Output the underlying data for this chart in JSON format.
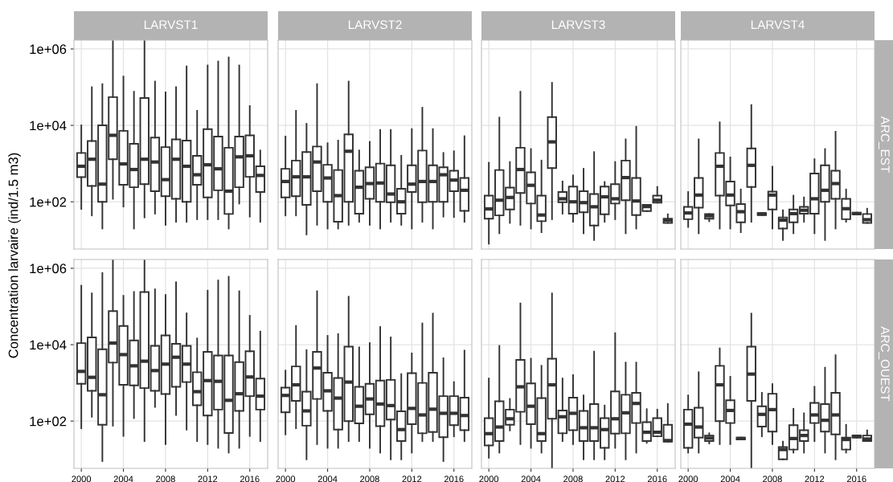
{
  "chart_data": [
    {
      "type": "box",
      "title": "LARVST1",
      "ylabel": "Concentration larvaire (ind/1.5 m3)",
      "x": [
        2000,
        2001,
        2002,
        2003,
        2004,
        2005,
        2006,
        2007,
        2008,
        2009,
        2010,
        2011,
        2012,
        2013,
        2014,
        2015,
        2016,
        2017
      ],
      "xlim": [
        1999.3,
        2017.7
      ],
      "xticks": [
        2000,
        2004,
        2008,
        2012,
        2016
      ],
      "ylim": [
        5.8,
        1700000
      ],
      "yticks": [
        {
          "value": 100,
          "label": "1e+02"
        },
        {
          "value": 10000,
          "label": "1e+04"
        },
        {
          "value": 1000000,
          "label": "1e+06"
        }
      ],
      "log": true,
      "grid": true,
      "tick_labels": "y",
      "boxes": [
        {
          "low": 65,
          "q1": 440,
          "median": 850,
          "q3": 1900,
          "high": 10000
        },
        {
          "low": 44,
          "q1": 260,
          "median": 1300,
          "q3": 3900,
          "high": 100000
        },
        {
          "low": 20,
          "q1": 100,
          "median": 290,
          "q3": 10000,
          "high": 120000
        },
        {
          "low": 120,
          "q1": 1300,
          "median": 5500,
          "q3": 55000,
          "high": 1700000
        },
        {
          "low": 75,
          "q1": 280,
          "median": 980,
          "q3": 7200,
          "high": 190000
        },
        {
          "low": 20,
          "q1": 240,
          "median": 700,
          "q3": 3300,
          "high": 76000
        },
        {
          "low": 39,
          "q1": 290,
          "median": 1300,
          "q3": 52000,
          "high": 1700000
        },
        {
          "low": 49,
          "q1": 190,
          "median": 1100,
          "q3": 4800,
          "high": 140000
        },
        {
          "low": 25,
          "q1": 140,
          "median": 380,
          "q3": 2700,
          "high": 73000
        },
        {
          "low": 30,
          "q1": 120,
          "median": 1300,
          "q3": 4300,
          "high": 100000
        },
        {
          "low": 30,
          "q1": 100,
          "median": 850,
          "q3": 4000,
          "high": 350000
        },
        {
          "low": 35,
          "q1": 280,
          "median": 510,
          "q3": 1600,
          "high": 24000
        },
        {
          "low": 35,
          "q1": 130,
          "median": 930,
          "q3": 8000,
          "high": 370000
        },
        {
          "low": 35,
          "q1": 200,
          "median": 730,
          "q3": 5100,
          "high": 470000
        },
        {
          "low": 20,
          "q1": 48,
          "median": 190,
          "q3": 2600,
          "high": 600000
        },
        {
          "low": 90,
          "q1": 240,
          "median": 1500,
          "q3": 5100,
          "high": 370000
        },
        {
          "low": 41,
          "q1": 450,
          "median": 1600,
          "q3": 5500,
          "high": 32000
        },
        {
          "low": 30,
          "q1": 180,
          "median": 490,
          "q3": 850,
          "high": 2200
        }
      ]
    },
    {
      "type": "box",
      "title": "LARVST2",
      "x": [
        2000,
        2001,
        2002,
        2003,
        2004,
        2005,
        2006,
        2007,
        2008,
        2009,
        2010,
        2011,
        2012,
        2013,
        2014,
        2015,
        2016,
        2017
      ],
      "xlim": [
        1999.3,
        2017.7
      ],
      "xticks": [
        2000,
        2004,
        2008,
        2012,
        2016
      ],
      "ylim": [
        5.8,
        1700000
      ],
      "yticks": [
        {
          "value": 100,
          "label": null
        },
        {
          "value": 10000,
          "label": null
        },
        {
          "value": 1000000,
          "label": null
        }
      ],
      "log": true,
      "grid": true,
      "tick_labels": false,
      "boxes": [
        {
          "low": 44,
          "q1": 130,
          "median": 340,
          "q3": 730,
          "high": 5100
        },
        {
          "low": 44,
          "q1": 140,
          "median": 450,
          "q3": 1200,
          "high": 24000
        },
        {
          "low": 14,
          "q1": 83,
          "median": 450,
          "q3": 2000,
          "high": 11000
        },
        {
          "low": 25,
          "q1": 190,
          "median": 1100,
          "q3": 2800,
          "high": 120000
        },
        {
          "low": 20,
          "q1": 100,
          "median": 420,
          "q3": 930,
          "high": 3400
        },
        {
          "low": 20,
          "q1": 30,
          "median": 145,
          "q3": 680,
          "high": 4000
        },
        {
          "low": 25,
          "q1": 100,
          "median": 2100,
          "q3": 5800,
          "high": 140000
        },
        {
          "low": 30,
          "q1": 49,
          "median": 240,
          "q3": 650,
          "high": 2200
        },
        {
          "low": 25,
          "q1": 120,
          "median": 300,
          "q3": 800,
          "high": 3700
        },
        {
          "low": 20,
          "q1": 100,
          "median": 310,
          "q3": 1000,
          "high": 7600
        },
        {
          "low": 30,
          "q1": 97,
          "median": 160,
          "q3": 900,
          "high": 7600
        },
        {
          "low": 25,
          "q1": 49,
          "median": 100,
          "q3": 220,
          "high": 1600
        },
        {
          "low": 20,
          "q1": 180,
          "median": 290,
          "q3": 900,
          "high": 8000
        },
        {
          "low": 30,
          "q1": 97,
          "median": 340,
          "q3": 2200,
          "high": 29000
        },
        {
          "low": 20,
          "q1": 100,
          "median": 340,
          "q3": 900,
          "high": 8000
        },
        {
          "low": 41,
          "q1": 100,
          "median": 510,
          "q3": 800,
          "high": 1900
        },
        {
          "low": 40,
          "q1": 190,
          "median": 370,
          "q3": 650,
          "high": 2100
        },
        {
          "low": 30,
          "q1": 58,
          "median": 200,
          "q3": 420,
          "high": 5200
        }
      ]
    },
    {
      "type": "box",
      "title": "LARVST3",
      "x": [
        2000,
        2001,
        2002,
        2003,
        2004,
        2005,
        2006,
        2007,
        2008,
        2009,
        2010,
        2011,
        2012,
        2013,
        2014,
        2015,
        2016,
        2017
      ],
      "xlim": [
        1999.3,
        2017.7
      ],
      "xticks": [
        2000,
        2004,
        2008,
        2012,
        2016
      ],
      "ylim": [
        5.8,
        1700000
      ],
      "yticks": [
        {
          "value": 100,
          "label": null
        },
        {
          "value": 10000,
          "label": null
        },
        {
          "value": 1000000,
          "label": null
        }
      ],
      "log": true,
      "grid": true,
      "tick_labels": false,
      "boxes": [
        {
          "low": 8,
          "q1": 36,
          "median": 65,
          "q3": 145,
          "high": 1050
        },
        {
          "low": 15,
          "q1": 44,
          "median": 110,
          "q3": 680,
          "high": 16000
        },
        {
          "low": 28,
          "q1": 63,
          "median": 130,
          "q3": 235,
          "high": 1100
        },
        {
          "low": 25,
          "q1": 170,
          "median": 700,
          "q3": 2600,
          "high": 76000
        },
        {
          "low": 20,
          "q1": 90,
          "median": 270,
          "q3": 590,
          "high": 2400
        },
        {
          "low": 16,
          "q1": 31,
          "median": 45,
          "q3": 145,
          "high": 1200
        },
        {
          "low": 35,
          "q1": 760,
          "median": 3700,
          "q3": 16500,
          "high": 130000
        },
        {
          "low": 49,
          "q1": 97,
          "median": 120,
          "q3": 180,
          "high": 340
        },
        {
          "low": 30,
          "q1": 49,
          "median": 100,
          "q3": 250,
          "high": 490
        },
        {
          "low": 15,
          "q1": 53,
          "median": 95,
          "q3": 190,
          "high": 730
        },
        {
          "low": 10,
          "q1": 24,
          "median": 74,
          "q3": 160,
          "high": 2000
        },
        {
          "low": 30,
          "q1": 47,
          "median": 135,
          "q3": 250,
          "high": 330
        },
        {
          "low": 35,
          "q1": 90,
          "median": 120,
          "q3": 290,
          "high": 1100
        },
        {
          "low": 15,
          "q1": 110,
          "median": 430,
          "q3": 1200,
          "high": 4300
        },
        {
          "low": 20,
          "q1": 45,
          "median": 105,
          "q3": 420,
          "high": 9200
        },
        {
          "low": 57,
          "q1": 57,
          "median": 75,
          "q3": 83,
          "high": 83
        },
        {
          "low": 95,
          "q1": 95,
          "median": 110,
          "q3": 145,
          "high": 245
        },
        {
          "low": 28,
          "q1": 28,
          "median": 33,
          "q3": 36,
          "high": 47
        }
      ]
    },
    {
      "type": "box",
      "title": "LARVST4",
      "y2label": "ARC_EST",
      "x": [
        2000,
        2001,
        2002,
        2003,
        2004,
        2005,
        2006,
        2007,
        2008,
        2009,
        2010,
        2011,
        2012,
        2013,
        2014,
        2015,
        2016,
        2017
      ],
      "xlim": [
        1999.3,
        2017.7
      ],
      "xticks": [
        2000,
        2004,
        2008,
        2012,
        2016
      ],
      "ylim": [
        5.8,
        1700000
      ],
      "yticks": [
        {
          "value": 100,
          "label": null
        },
        {
          "value": 10000,
          "label": null
        },
        {
          "value": 1000000,
          "label": null
        }
      ],
      "log": true,
      "grid": true,
      "tick_labels": false,
      "boxes": [
        {
          "low": 22,
          "q1": 35,
          "median": 51,
          "q3": 74,
          "high": 180
        },
        {
          "low": 15,
          "q1": 70,
          "median": 150,
          "q3": 420,
          "high": 4300
        },
        {
          "low": 31,
          "q1": 36,
          "median": 43,
          "q3": 48,
          "high": 48
        },
        {
          "low": 20,
          "q1": 145,
          "median": 850,
          "q3": 1900,
          "high": 12000
        },
        {
          "low": 20,
          "q1": 80,
          "median": 150,
          "q3": 340,
          "high": 1450
        },
        {
          "low": 16,
          "q1": 29,
          "median": 55,
          "q3": 87,
          "high": 210
        },
        {
          "low": 30,
          "q1": 245,
          "median": 900,
          "q3": 2500,
          "high": 34000
        },
        {
          "low": 45,
          "q1": 45,
          "median": 48,
          "q3": 51,
          "high": 51
        },
        {
          "low": 20,
          "q1": 63,
          "median": 150,
          "q3": 185,
          "high": 830
        },
        {
          "low": 10,
          "q1": 20,
          "median": 33,
          "q3": 39,
          "high": 60
        },
        {
          "low": 15,
          "q1": 29,
          "median": 49,
          "q3": 63,
          "high": 145
        },
        {
          "low": 30,
          "q1": 49,
          "median": 60,
          "q3": 74,
          "high": 130
        },
        {
          "low": 15,
          "q1": 49,
          "median": 120,
          "q3": 550,
          "high": 1300
        },
        {
          "low": 10,
          "q1": 100,
          "median": 200,
          "q3": 900,
          "high": 2400
        },
        {
          "low": 20,
          "q1": 120,
          "median": 300,
          "q3": 650,
          "high": 6800
        },
        {
          "low": 30,
          "q1": 35,
          "median": 66,
          "q3": 120,
          "high": 210
        },
        {
          "low": 47,
          "q1": 47,
          "median": 49,
          "q3": 52,
          "high": 52
        },
        {
          "low": 28,
          "q1": 28,
          "median": 34,
          "q3": 48,
          "high": 66
        }
      ]
    },
    {
      "type": "box",
      "x": [
        2000,
        2001,
        2002,
        2003,
        2004,
        2005,
        2006,
        2007,
        2008,
        2009,
        2010,
        2011,
        2012,
        2013,
        2014,
        2015,
        2016,
        2017
      ],
      "xlim": [
        1999.3,
        2017.7
      ],
      "xticks": [
        2000,
        2004,
        2008,
        2012,
        2016
      ],
      "ylim": [
        5.8,
        1700000
      ],
      "yticks": [
        {
          "value": 100,
          "label": "1e+02"
        },
        {
          "value": 10000,
          "label": "1e+04"
        },
        {
          "value": 1000000,
          "label": "1e+06"
        }
      ],
      "log": true,
      "grid": true,
      "boxes": [
        {
          "low": 65,
          "q1": 950,
          "median": 2000,
          "q3": 11000,
          "high": 350000
        },
        {
          "low": 130,
          "q1": 620,
          "median": 1400,
          "q3": 15500,
          "high": 220000
        },
        {
          "low": 9,
          "q1": 80,
          "median": 490,
          "q3": 7600,
          "high": 750000
        },
        {
          "low": 76,
          "q1": 3400,
          "median": 11000,
          "q3": 76000,
          "high": 1700000
        },
        {
          "low": 41,
          "q1": 890,
          "median": 5500,
          "q3": 31000,
          "high": 190000
        },
        {
          "low": 120,
          "q1": 860,
          "median": 2800,
          "q3": 13000,
          "high": 240000
        },
        {
          "low": 30,
          "q1": 730,
          "median": 3700,
          "q3": 240000,
          "high": 1700000
        },
        {
          "low": 235,
          "q1": 620,
          "median": 2100,
          "q3": 9300,
          "high": 280000
        },
        {
          "low": 25,
          "q1": 510,
          "median": 3100,
          "q3": 17500,
          "high": 200000
        },
        {
          "low": 145,
          "q1": 790,
          "median": 4700,
          "q3": 10500,
          "high": 430000
        },
        {
          "low": 60,
          "q1": 1050,
          "median": 3100,
          "q3": 9300,
          "high": 66000
        },
        {
          "low": 30,
          "q1": 260,
          "median": 590,
          "q3": 1900,
          "high": 14500
        },
        {
          "low": 25,
          "q1": 140,
          "median": 1150,
          "q3": 6500,
          "high": 260000
        },
        {
          "low": 20,
          "q1": 200,
          "median": 1100,
          "q3": 5200,
          "high": 480000
        },
        {
          "low": 15,
          "q1": 49,
          "median": 350,
          "q3": 5200,
          "high": 600000
        },
        {
          "low": 20,
          "q1": 185,
          "median": 520,
          "q3": 3500,
          "high": 250000
        },
        {
          "low": 41,
          "q1": 450,
          "median": 1430,
          "q3": 6700,
          "high": 57000
        },
        {
          "low": 30,
          "q1": 200,
          "median": 450,
          "q3": 1300,
          "high": 22000
        }
      ]
    },
    {
      "type": "box",
      "x": [
        2000,
        2001,
        2002,
        2003,
        2004,
        2005,
        2006,
        2007,
        2008,
        2009,
        2010,
        2011,
        2012,
        2013,
        2014,
        2015,
        2016,
        2017
      ],
      "xlim": [
        1999.3,
        2017.7
      ],
      "xticks": [
        2000,
        2004,
        2008,
        2012,
        2016
      ],
      "ylim": [
        5.8,
        1700000
      ],
      "yticks": [
        {
          "value": 100,
          "label": null
        },
        {
          "value": 10000,
          "label": null
        },
        {
          "value": 1000000,
          "label": null
        }
      ],
      "log": true,
      "grid": true,
      "tick_labels": "x",
      "boxes": [
        {
          "low": 45,
          "q1": 170,
          "median": 470,
          "q3": 750,
          "high": 2100
        },
        {
          "low": 65,
          "q1": 340,
          "median": 890,
          "q3": 2700,
          "high": 31000
        },
        {
          "low": 10,
          "q1": 76,
          "median": 185,
          "q3": 590,
          "high": 7200
        },
        {
          "low": 25,
          "q1": 380,
          "median": 2450,
          "q3": 6500,
          "high": 250000
        },
        {
          "low": 20,
          "q1": 185,
          "median": 620,
          "q3": 1850,
          "high": 17000
        },
        {
          "low": 20,
          "q1": 60,
          "median": 400,
          "q3": 1350,
          "high": 19000
        },
        {
          "low": 30,
          "q1": 100,
          "median": 1050,
          "q3": 8900,
          "high": 180000
        },
        {
          "low": 30,
          "q1": 87,
          "median": 245,
          "q3": 790,
          "high": 8500
        },
        {
          "low": 20,
          "q1": 150,
          "median": 380,
          "q3": 950,
          "high": 11000
        },
        {
          "low": 15,
          "q1": 74,
          "median": 280,
          "q3": 1150,
          "high": 29000
        },
        {
          "low": 10,
          "q1": 110,
          "median": 255,
          "q3": 1200,
          "high": 15500
        },
        {
          "low": 10,
          "q1": 30,
          "median": 60,
          "q3": 180,
          "high": 1700
        },
        {
          "low": 15,
          "q1": 83,
          "median": 215,
          "q3": 1800,
          "high": 5900
        },
        {
          "low": 30,
          "q1": 48,
          "median": 145,
          "q3": 1000,
          "high": 36000
        },
        {
          "low": 30,
          "q1": 52,
          "median": 205,
          "q3": 1850,
          "high": 65000
        },
        {
          "low": 9,
          "q1": 38,
          "median": 160,
          "q3": 450,
          "high": 4400
        },
        {
          "low": 40,
          "q1": 78,
          "median": 160,
          "q3": 450,
          "high": 1050
        },
        {
          "low": 30,
          "q1": 58,
          "median": 140,
          "q3": 410,
          "high": 7000
        }
      ]
    },
    {
      "type": "box",
      "x": [
        2000,
        2001,
        2002,
        2003,
        2004,
        2005,
        2006,
        2007,
        2008,
        2009,
        2010,
        2011,
        2012,
        2013,
        2014,
        2015,
        2016,
        2017
      ],
      "xlim": [
        1999.3,
        2017.7
      ],
      "xticks": [
        2000,
        2004,
        2008,
        2012,
        2016
      ],
      "ylim": [
        5.8,
        1700000
      ],
      "yticks": [
        {
          "value": 100,
          "label": null
        },
        {
          "value": 10000,
          "label": null
        },
        {
          "value": 1000000,
          "label": null
        }
      ],
      "log": true,
      "grid": true,
      "tick_labels": "x",
      "boxes": [
        {
          "low": 11,
          "q1": 23,
          "median": 47,
          "q3": 120,
          "high": 1300
        },
        {
          "low": 15,
          "q1": 30,
          "median": 70,
          "q3": 330,
          "high": 9300
        },
        {
          "low": 57,
          "q1": 80,
          "median": 115,
          "q3": 200,
          "high": 380
        },
        {
          "low": 25,
          "q1": 175,
          "median": 790,
          "q3": 4000,
          "high": 120000
        },
        {
          "low": 20,
          "q1": 83,
          "median": 245,
          "q3": 970,
          "high": 4300
        },
        {
          "low": 15,
          "q1": 30,
          "median": 47,
          "q3": 400,
          "high": 2800
        },
        {
          "low": 6,
          "q1": 115,
          "median": 890,
          "q3": 4300,
          "high": 220000
        },
        {
          "low": 30,
          "q1": 48,
          "median": 130,
          "q3": 190,
          "high": 1300
        },
        {
          "low": 25,
          "q1": 58,
          "median": 160,
          "q3": 410,
          "high": 1600
        },
        {
          "low": 10,
          "q1": 30,
          "median": 67,
          "q3": 185,
          "high": 470
        },
        {
          "low": 10,
          "q1": 30,
          "median": 67,
          "q3": 280,
          "high": 6600
        },
        {
          "low": 10,
          "q1": 20,
          "median": 60,
          "q3": 120,
          "high": 255
        },
        {
          "low": 20,
          "q1": 47,
          "median": 115,
          "q3": 600,
          "high": 20000
        },
        {
          "low": 10,
          "q1": 48,
          "median": 165,
          "q3": 490,
          "high": 3400
        },
        {
          "low": 15,
          "q1": 89,
          "median": 290,
          "q3": 550,
          "high": 3400
        },
        {
          "low": 27,
          "q1": 30,
          "median": 51,
          "q3": 94,
          "high": 205
        },
        {
          "low": 40,
          "q1": 40,
          "median": 51,
          "q3": 120,
          "high": 200
        },
        {
          "low": 29,
          "q1": 29,
          "median": 31,
          "q3": 80,
          "high": 280
        }
      ]
    },
    {
      "type": "box",
      "y2label": "ARC_OUEST",
      "x": [
        2000,
        2001,
        2002,
        2003,
        2004,
        2005,
        2006,
        2007,
        2008,
        2009,
        2010,
        2011,
        2012,
        2013,
        2014,
        2015,
        2016,
        2017
      ],
      "xlim": [
        1999.3,
        2017.7
      ],
      "xticks": [
        2000,
        2004,
        2008,
        2012,
        2016
      ],
      "ylim": [
        5.8,
        1700000
      ],
      "yticks": [
        {
          "value": 100,
          "label": null
        },
        {
          "value": 10000,
          "label": null
        },
        {
          "value": 1000000,
          "label": null
        }
      ],
      "log": true,
      "grid": true,
      "tick_labels": "x",
      "boxes": [
        {
          "low": 15,
          "q1": 20,
          "median": 83,
          "q3": 200,
          "high": 470
        },
        {
          "low": 15,
          "q1": 37,
          "median": 70,
          "q3": 225,
          "high": 1900
        },
        {
          "low": 26,
          "q1": 30,
          "median": 36,
          "q3": 42,
          "high": 48
        },
        {
          "low": 25,
          "q1": 100,
          "median": 890,
          "q3": 2800,
          "high": 8000
        },
        {
          "low": 25,
          "q1": 89,
          "median": 190,
          "q3": 350,
          "high": 1450
        },
        {
          "low": 33,
          "q1": 33,
          "median": 35,
          "q3": 37,
          "high": 37
        },
        {
          "low": 6,
          "q1": 340,
          "median": 1700,
          "q3": 8900,
          "high": 65000
        },
        {
          "low": 40,
          "q1": 72,
          "median": 150,
          "q3": 245,
          "high": 550
        },
        {
          "low": 25,
          "q1": 53,
          "median": 200,
          "q3": 520,
          "high": 930
        },
        {
          "low": 10,
          "q1": 10,
          "median": 18,
          "q3": 21,
          "high": 29
        },
        {
          "low": 15,
          "q1": 18,
          "median": 35,
          "q3": 78,
          "high": 210
        },
        {
          "low": 15,
          "q1": 30,
          "median": 42,
          "q3": 58,
          "high": 160
        },
        {
          "low": 30,
          "q1": 89,
          "median": 145,
          "q3": 300,
          "high": 790
        },
        {
          "low": 15,
          "q1": 53,
          "median": 105,
          "q3": 280,
          "high": 2500
        },
        {
          "low": 10,
          "q1": 45,
          "median": 145,
          "q3": 550,
          "high": 5300
        },
        {
          "low": 15,
          "q1": 18,
          "median": 33,
          "q3": 37,
          "high": 80
        },
        {
          "low": 37,
          "q1": 37,
          "median": 40,
          "q3": 42,
          "high": 42
        },
        {
          "low": 30,
          "q1": 30,
          "median": 34,
          "q3": 42,
          "high": 57
        }
      ]
    }
  ]
}
